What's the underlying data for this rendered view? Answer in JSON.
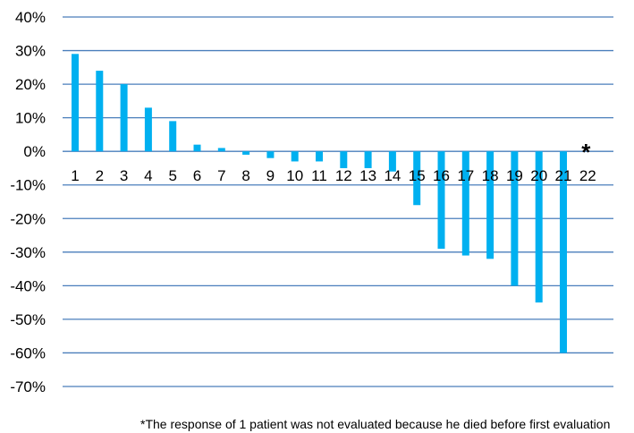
{
  "chart_data": {
    "type": "bar",
    "categories": [
      "1",
      "2",
      "3",
      "4",
      "5",
      "6",
      "7",
      "8",
      "9",
      "10",
      "11",
      "12",
      "13",
      "14",
      "15",
      "16",
      "17",
      "18",
      "19",
      "20",
      "21",
      "22"
    ],
    "values": [
      29,
      24,
      20,
      13,
      9,
      2,
      1,
      -1,
      -2,
      -3,
      -3,
      -5,
      -5,
      -6,
      -16,
      -29,
      -31,
      -32,
      -40,
      -45,
      -60,
      null
    ],
    "value_unit": "%",
    "ylim": [
      -70,
      40
    ],
    "yticks": [
      "40%",
      "30%",
      "20%",
      "10%",
      "0%",
      "-10%",
      "-20%",
      "-30%",
      "-40%",
      "-50%",
      "-60%",
      "-70%"
    ],
    "grid": true,
    "bar_color": "#00B0F0",
    "grid_color": "#4A7EBB",
    "annotations": [
      {
        "category": "22",
        "text": "*"
      }
    ],
    "footnote": "*The response of 1 patient was not evaluated because he died before first evaluation"
  }
}
